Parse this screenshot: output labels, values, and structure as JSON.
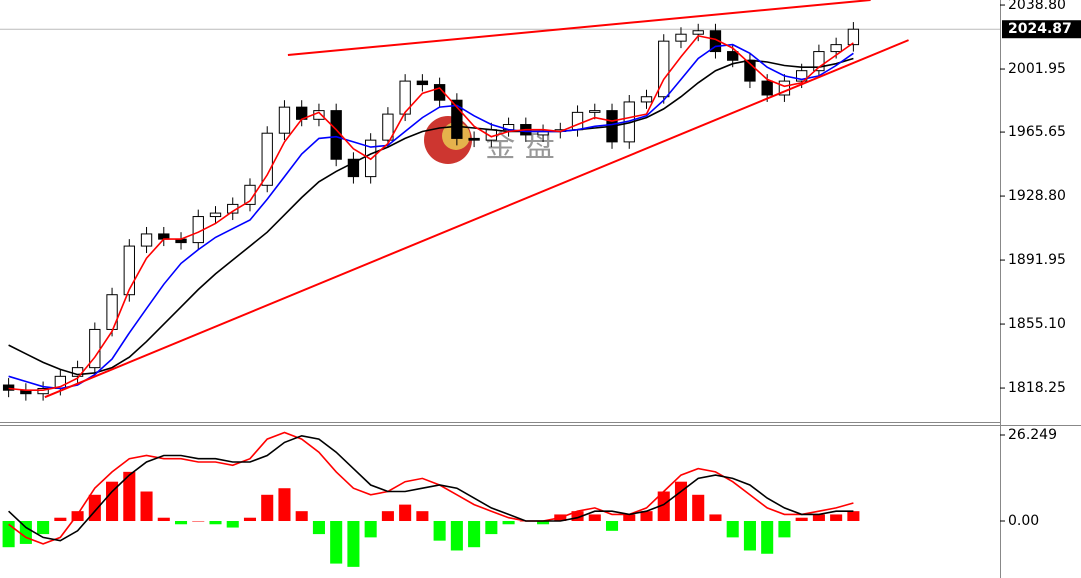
{
  "chart_data": [
    {
      "type": "candlestick",
      "watermark": "金 盘",
      "open": [
        1820,
        1817,
        1815,
        1818,
        1825,
        1830,
        1852,
        1872,
        1900,
        1907,
        1904,
        1902,
        1917,
        1919,
        1924,
        1935,
        1965,
        1980,
        1973,
        1978,
        1950,
        1940,
        1961,
        1976,
        1995,
        1993,
        1984,
        1962,
        1961,
        1967,
        1970,
        1964,
        1966,
        1967,
        1977,
        1978,
        1960,
        1983,
        1986,
        2018,
        2022,
        2024,
        2012,
        2007,
        1995,
        1987,
        1995,
        2001,
        2012,
        2016
      ],
      "high": [
        1824,
        1821,
        1822,
        1829,
        1834,
        1856,
        1876,
        1904,
        1911,
        1911,
        1908,
        1921,
        1923,
        1928,
        1939,
        1969,
        1984,
        1984,
        1982,
        1982,
        1954,
        1965,
        1980,
        1999,
        1999,
        1997,
        1988,
        1966,
        1971,
        1974,
        1974,
        1970,
        1971,
        1981,
        1982,
        1982,
        1987,
        1990,
        2022,
        2026,
        2028,
        2028,
        2016,
        2011,
        1999,
        1999,
        2005,
        2016,
        2020,
        2029
      ],
      "low": [
        1813,
        1811,
        1811,
        1814,
        1821,
        1826,
        1848,
        1868,
        1896,
        1900,
        1898,
        1898,
        1913,
        1915,
        1920,
        1931,
        1961,
        1969,
        1969,
        1946,
        1936,
        1936,
        1957,
        1972,
        1989,
        1980,
        1958,
        1957,
        1957,
        1963,
        1960,
        1960,
        1962,
        1963,
        1973,
        1956,
        1956,
        1979,
        1982,
        2014,
        2018,
        2008,
        2003,
        1991,
        1983,
        1983,
        1991,
        1997,
        2008,
        2012
      ],
      "close": [
        1817,
        1815,
        1818,
        1825,
        1830,
        1852,
        1872,
        1900,
        1907,
        1904,
        1902,
        1917,
        1919,
        1924,
        1935,
        1965,
        1980,
        1973,
        1978,
        1950,
        1940,
        1961,
        1976,
        1995,
        1993,
        1984,
        1962,
        1961,
        1967,
        1970,
        1964,
        1966,
        1967,
        1977,
        1978,
        1960,
        1983,
        1986,
        2018,
        2022,
        2024,
        2012,
        2007,
        1995,
        1987,
        1995,
        2001,
        2012,
        2016,
        2024.87
      ],
      "series": [
        {
          "color": "#000000",
          "values": [
            1843,
            1838,
            1833,
            1829,
            1826,
            1827,
            1830,
            1836,
            1845,
            1855,
            1865,
            1875,
            1884,
            1892,
            1900,
            1908,
            1918,
            1928,
            1937,
            1943,
            1948,
            1953,
            1957,
            1962,
            1966,
            1968,
            1969,
            1968,
            1967,
            1966,
            1966,
            1966,
            1966,
            1967,
            1968,
            1969,
            1971,
            1974,
            1979,
            1986,
            1994,
            2001,
            2005,
            2007,
            2006,
            2004,
            2003,
            2003,
            2005,
            2008
          ]
        },
        {
          "color": "#0000ff",
          "values": [
            1825,
            1822,
            1819,
            1818,
            1820,
            1826,
            1835,
            1850,
            1864,
            1878,
            1890,
            1898,
            1905,
            1910,
            1915,
            1927,
            1940,
            1953,
            1962,
            1963,
            1960,
            1957,
            1958,
            1966,
            1974,
            1980,
            1981,
            1975,
            1970,
            1967,
            1966,
            1966,
            1966,
            1967,
            1969,
            1970,
            1972,
            1975,
            1984,
            1996,
            2008,
            2015,
            2016,
            2011,
            2003,
            1998,
            1996,
            1998,
            2004,
            2011
          ]
        },
        {
          "color": "#ff0000",
          "values": [
            1818,
            1817,
            1817,
            1819,
            1824,
            1836,
            1851,
            1875,
            1893,
            1904,
            1904,
            1908,
            1913,
            1920,
            1926,
            1941,
            1960,
            1973,
            1977,
            1967,
            1956,
            1950,
            1959,
            1977,
            1988,
            1991,
            1980,
            1969,
            1963,
            1966,
            1967,
            1967,
            1966,
            1970,
            1974,
            1972,
            1974,
            1976,
            1996,
            2009,
            2021,
            2019,
            2014,
            2005,
            1996,
            1992,
            1994,
            2003,
            2010,
            2017
          ]
        }
      ],
      "trendlines": [
        {
          "color": "#ff0000",
          "x": [
            16.2,
            50
          ],
          "y": [
            2010,
            2041.7
          ]
        },
        {
          "color": "#ff0000",
          "x": [
            2.1,
            52.2
          ],
          "y": [
            1813,
            2018.6
          ]
        }
      ],
      "last_price": 2024.87,
      "ylim": [
        1798.7,
        2041.7
      ],
      "yticks": [
        {
          "value": 2038.8,
          "label": "2038.80"
        },
        2001.95,
        1965.65,
        {
          "value": 1928.8,
          "label": "1928.80"
        },
        1891.95,
        {
          "value": 1855.1,
          "label": "1855.10"
        },
        1818.25
      ]
    },
    {
      "type": "macd",
      "histogram": [
        -8,
        -7,
        -4,
        1,
        3,
        8,
        12,
        15,
        9,
        1,
        -1,
        0,
        -1,
        -2,
        1,
        8,
        10,
        3,
        -4,
        -13,
        -14,
        -5,
        3,
        5,
        3,
        -6,
        -9,
        -8,
        -4,
        -1,
        0,
        -1,
        2,
        3,
        2,
        -3,
        2,
        3,
        9,
        12,
        8,
        2,
        -5,
        -9,
        -10,
        -5,
        1,
        2,
        2,
        3
      ],
      "positive_color": "#ff0000",
      "negative_color": "#00ff00",
      "series": [
        {
          "color": "#ff0000",
          "values": [
            -1,
            -5,
            -7,
            -5,
            2,
            10,
            15,
            19,
            20,
            19,
            19,
            18,
            18,
            17,
            19,
            25,
            27,
            25,
            21,
            15,
            10,
            8,
            9,
            12,
            13,
            11,
            8,
            5,
            3,
            1,
            0,
            0,
            1,
            3,
            4,
            2,
            2,
            4,
            9,
            14,
            16,
            15,
            12,
            8,
            4,
            2,
            2,
            3,
            4,
            5.5
          ]
        },
        {
          "color": "#000000",
          "values": [
            3,
            -2,
            -5,
            -6,
            -3,
            3,
            9,
            14,
            18,
            20,
            20,
            19,
            19,
            18,
            18,
            20,
            24,
            26,
            25,
            21,
            16,
            11,
            9,
            9,
            10,
            11,
            10,
            7,
            4,
            2,
            0,
            0,
            0,
            1,
            3,
            3,
            2,
            3,
            5,
            9,
            13,
            14,
            13,
            11,
            7,
            4,
            2,
            2,
            3,
            3
          ]
        }
      ],
      "ylim": [
        -17.4,
        29.3
      ],
      "yticks": [
        26.249,
        {
          "value": 0,
          "label": "0.00"
        }
      ]
    }
  ]
}
